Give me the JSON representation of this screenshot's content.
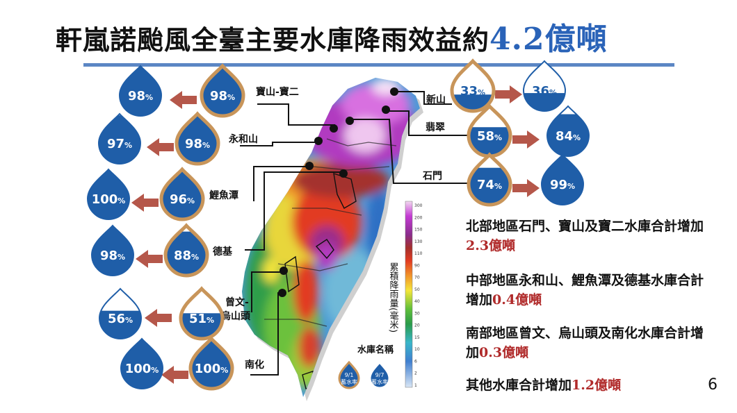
{
  "title": {
    "main": "軒嵐諾颱風全臺主要水庫降雨效益約",
    "highlight": "4.2億噸"
  },
  "colors": {
    "drop_fill": "#1f5ea8",
    "drop_empty": "#ffffff",
    "before_outline": "#c8955a",
    "arrow": "#b5574a",
    "title_rule": "#5b86c4",
    "amount": "#b02a2a"
  },
  "reservoirs": [
    {
      "id": "baoshan",
      "label": "寶山-寶二",
      "before": "98",
      "after": "98",
      "unit": "%"
    },
    {
      "id": "yonghe",
      "label": "永和山",
      "before": "98",
      "after": "97",
      "unit": "%"
    },
    {
      "id": "liyu",
      "label": "鯉魚潭",
      "before": "96",
      "after": "100",
      "unit": "%"
    },
    {
      "id": "deji",
      "label": "德基",
      "before": "88",
      "after": "98",
      "unit": "%"
    },
    {
      "id": "zengwen",
      "label_line1": "曾文-",
      "label_line2": "烏山頭",
      "before": "51",
      "after": "56",
      "unit": "%"
    },
    {
      "id": "nanhua",
      "label": "南化",
      "before": "100",
      "after": "100",
      "unit": "%"
    },
    {
      "id": "xinshan",
      "label": "新山",
      "before": "33",
      "after": "36",
      "unit": "%"
    },
    {
      "id": "feicui",
      "label": "翡翠",
      "before": "58",
      "after": "84",
      "unit": "%"
    },
    {
      "id": "shimen",
      "label": "石門",
      "before": "74",
      "after": "99",
      "unit": "%"
    }
  ],
  "legend": {
    "colorbar_title": "累積降雨量(毫米)",
    "ticks": [
      "300",
      "200",
      "150",
      "130",
      "110",
      "90",
      "70",
      "50",
      "40",
      "30",
      "20",
      "15",
      "10",
      "6",
      "2",
      "1"
    ],
    "reservoir_name_label": "水庫名稱",
    "before_drop_date": "9/1",
    "before_drop_label": "蓄水率",
    "after_drop_date": "9/7",
    "after_drop_label": "蓄水率"
  },
  "summaries": [
    {
      "text": "北部地區石門、寶山及寶二水庫合計增加",
      "amount": "2.3億噸"
    },
    {
      "text": "中部地區永和山、鯉魚潭及德基水庫合計增加",
      "amount": "0.4億噸"
    },
    {
      "text": "南部地區曾文、烏山頭及南化水庫合計增加",
      "amount": "0.3億噸"
    },
    {
      "text": "其他水庫合計增加",
      "amount": "1.2億噸"
    }
  ],
  "page_number": "6"
}
